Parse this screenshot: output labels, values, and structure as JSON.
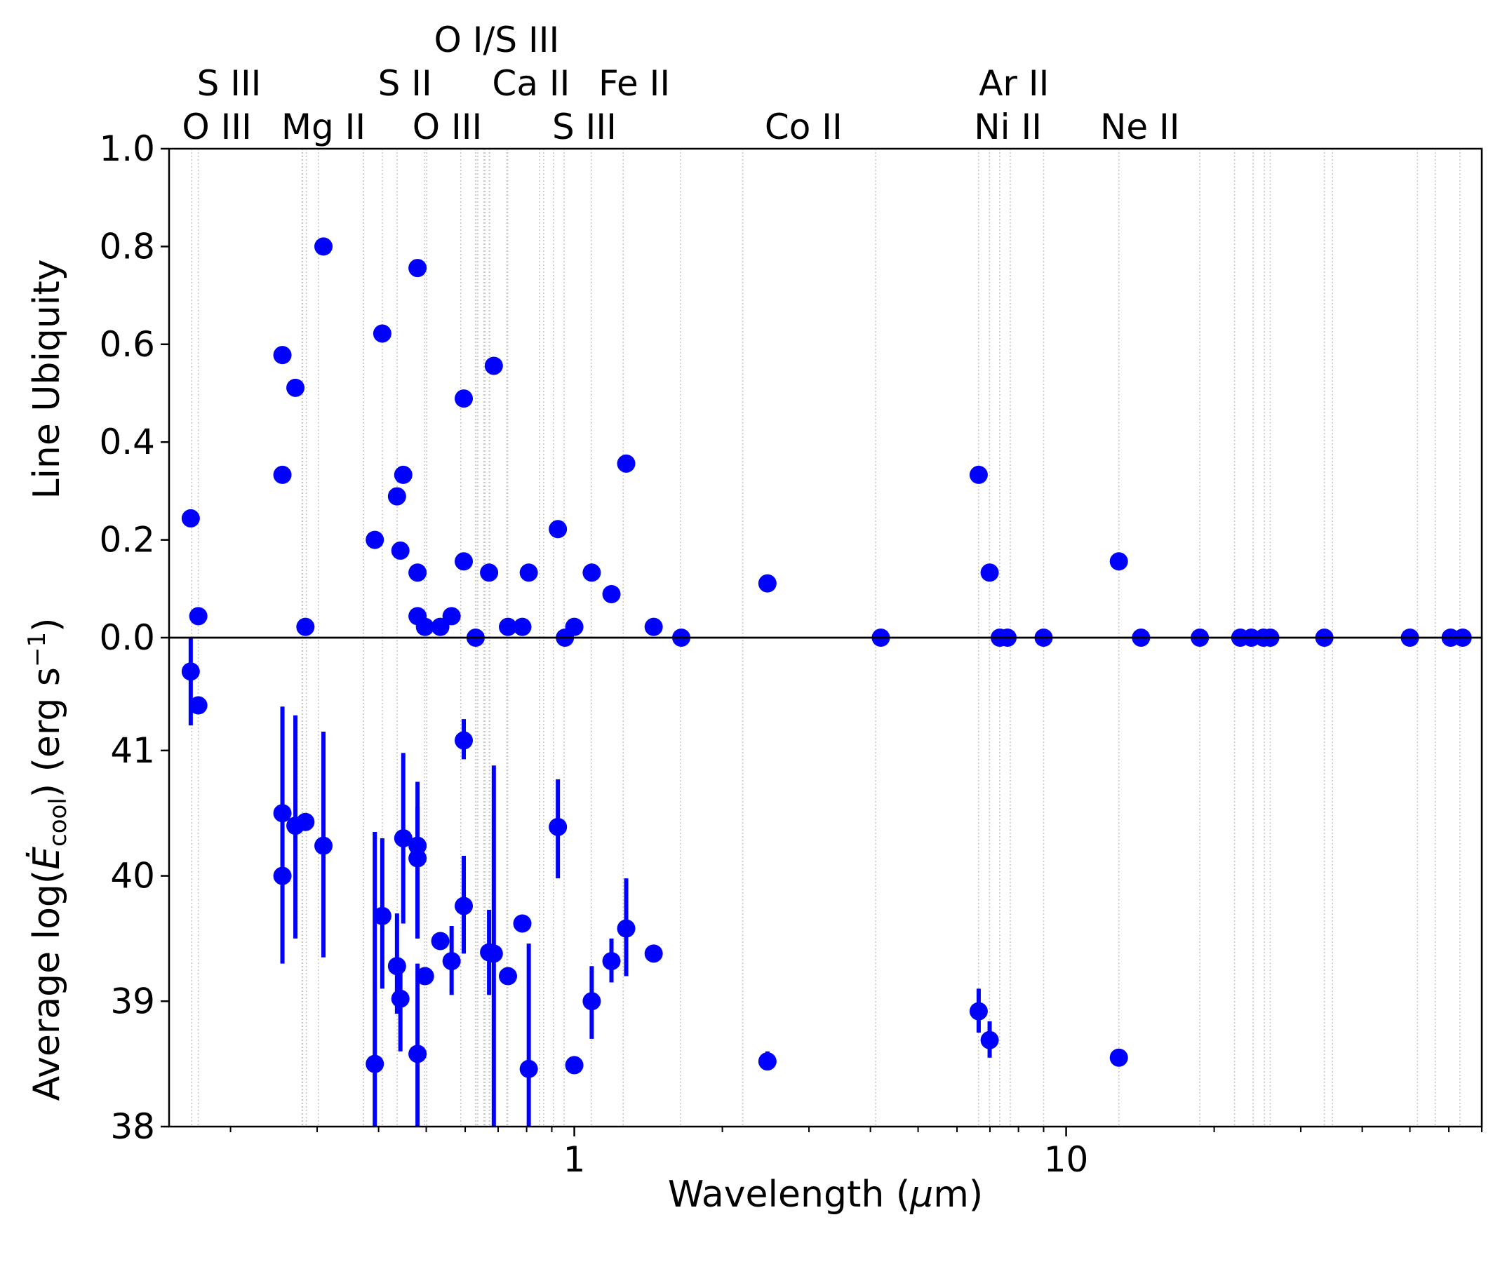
{
  "chart_data": {
    "type": "scatter",
    "xscale": "log",
    "xlabel": "Wavelength ($\\mu$m)",
    "xlabel_parts": {
      "prefix": "Wavelength (",
      "symbol": "μ",
      "suffix": "m)"
    },
    "xlim": [
      0.15,
      70
    ],
    "xticks": [
      {
        "value": 1,
        "label": "1"
      },
      {
        "value": 10,
        "label": "10"
      }
    ],
    "point_color": "#0000ff",
    "ion_labels": [
      {
        "text": "O III",
        "x": 0.17,
        "row": 1
      },
      {
        "text": "S III",
        "x": 0.18,
        "row": 3
      },
      {
        "text": "Mg II",
        "x": 0.28,
        "row": 1
      },
      {
        "text": "S II",
        "x": 0.41,
        "row": 2
      },
      {
        "text": "O III",
        "x": 0.5,
        "row": 1
      },
      {
        "text": "O I/S III",
        "x": 0.63,
        "row": 4
      },
      {
        "text": "Ca II",
        "x": 0.74,
        "row": 2
      },
      {
        "text": "S III",
        "x": 0.95,
        "row": 1
      },
      {
        "text": "Fe II",
        "x": 1.2,
        "row": 2
      },
      {
        "text": "Co II",
        "x": 2.65,
        "row": 1
      },
      {
        "text": "Ar II",
        "x": 7.1,
        "row": 2
      },
      {
        "text": "Ni II",
        "x": 6.9,
        "row": 1
      },
      {
        "text": "Ne II",
        "x": 12.8,
        "row": 1
      }
    ],
    "line_wavelengths": [
      0.1666,
      0.172,
      0.2796,
      0.2803,
      0.2852,
      0.3018,
      0.3726,
      0.3729,
      0.4069,
      0.4363,
      0.4959,
      0.5007,
      0.5876,
      0.63,
      0.6312,
      0.6364,
      0.6548,
      0.6583,
      0.6716,
      0.6731,
      0.7291,
      0.732,
      0.8498,
      0.8662,
      0.9069,
      0.9531,
      1.083,
      1.257,
      1.644,
      2.2,
      4.1,
      6.6366,
      6.9853,
      7.327,
      7.7,
      9.0,
      12.8,
      18.7,
      22.0,
      24.0,
      25.3,
      26.0,
      33.5,
      34.8,
      51.8,
      56.3,
      63.2
    ],
    "panels": [
      {
        "name": "ubiquity",
        "ylabel": "Line Ubiquity",
        "ylim": [
          0,
          1.0
        ],
        "yticks": [
          {
            "value": 0.0,
            "label": "0.0"
          },
          {
            "value": 0.2,
            "label": "0.2"
          },
          {
            "value": 0.4,
            "label": "0.4"
          },
          {
            "value": 0.6,
            "label": "0.6"
          },
          {
            "value": 0.8,
            "label": "0.8"
          },
          {
            "value": 1.0,
            "label": "1.0"
          }
        ],
        "points": [
          {
            "x": 0.166,
            "y": 0.244
          },
          {
            "x": 0.172,
            "y": 0.044
          },
          {
            "x": 0.255,
            "y": 0.578
          },
          {
            "x": 0.255,
            "y": 0.333
          },
          {
            "x": 0.271,
            "y": 0.511
          },
          {
            "x": 0.284,
            "y": 0.022
          },
          {
            "x": 0.309,
            "y": 0.8
          },
          {
            "x": 0.393,
            "y": 0.2
          },
          {
            "x": 0.407,
            "y": 0.622
          },
          {
            "x": 0.436,
            "y": 0.289
          },
          {
            "x": 0.443,
            "y": 0.178
          },
          {
            "x": 0.449,
            "y": 0.333
          },
          {
            "x": 0.48,
            "y": 0.756
          },
          {
            "x": 0.48,
            "y": 0.133
          },
          {
            "x": 0.48,
            "y": 0.044
          },
          {
            "x": 0.497,
            "y": 0.022
          },
          {
            "x": 0.534,
            "y": 0.022
          },
          {
            "x": 0.563,
            "y": 0.044
          },
          {
            "x": 0.596,
            "y": 0.489
          },
          {
            "x": 0.596,
            "y": 0.156
          },
          {
            "x": 0.63,
            "y": 0.0
          },
          {
            "x": 0.671,
            "y": 0.133
          },
          {
            "x": 0.686,
            "y": 0.556
          },
          {
            "x": 0.733,
            "y": 0.022
          },
          {
            "x": 0.784,
            "y": 0.022
          },
          {
            "x": 0.808,
            "y": 0.133
          },
          {
            "x": 0.926,
            "y": 0.222
          },
          {
            "x": 0.957,
            "y": 0.0
          },
          {
            "x": 1.0,
            "y": 0.022
          },
          {
            "x": 1.085,
            "y": 0.133
          },
          {
            "x": 1.19,
            "y": 0.089
          },
          {
            "x": 1.275,
            "y": 0.356
          },
          {
            "x": 1.45,
            "y": 0.022
          },
          {
            "x": 1.65,
            "y": 0.0
          },
          {
            "x": 2.47,
            "y": 0.111
          },
          {
            "x": 4.2,
            "y": 0.0
          },
          {
            "x": 6.64,
            "y": 0.333
          },
          {
            "x": 6.99,
            "y": 0.133
          },
          {
            "x": 7.33,
            "y": 0.0
          },
          {
            "x": 7.6,
            "y": 0.0
          },
          {
            "x": 9.0,
            "y": 0.0
          },
          {
            "x": 12.8,
            "y": 0.156
          },
          {
            "x": 14.2,
            "y": 0.0
          },
          {
            "x": 18.7,
            "y": 0.0
          },
          {
            "x": 22.6,
            "y": 0.0
          },
          {
            "x": 23.8,
            "y": 0.0
          },
          {
            "x": 25.2,
            "y": 0.0
          },
          {
            "x": 26.0,
            "y": 0.0
          },
          {
            "x": 33.5,
            "y": 0.0
          },
          {
            "x": 50.0,
            "y": 0.0
          },
          {
            "x": 60.5,
            "y": 0.0
          },
          {
            "x": 64.0,
            "y": 0.0
          }
        ]
      },
      {
        "name": "cooling",
        "ylabel": "Average log($\\dot{E}_{\\rm cool}$) (erg s$^{-1}$)",
        "ylabel_parts": {
          "prefix": "Average log(",
          "symbol": "Ė",
          "subscript": "cool",
          "mid": ") (erg s",
          "superscript": "−1",
          "suffix": ")"
        },
        "ylim": [
          38.0,
          41.9
        ],
        "yticks": [
          {
            "value": 38,
            "label": "38"
          },
          {
            "value": 39,
            "label": "39"
          },
          {
            "value": 40,
            "label": "40"
          },
          {
            "value": 41,
            "label": "41"
          }
        ],
        "points": [
          {
            "x": 0.166,
            "y": 41.63,
            "lo": 41.2,
            "hi": 41.9
          },
          {
            "x": 0.172,
            "y": 41.36,
            "lo": 41.36,
            "hi": 41.36
          },
          {
            "x": 0.255,
            "y": 40.5,
            "lo": 39.3,
            "hi": 41.35
          },
          {
            "x": 0.255,
            "y": 40.0,
            "lo": 40.0,
            "hi": 40.0
          },
          {
            "x": 0.271,
            "y": 40.4,
            "lo": 39.5,
            "hi": 41.28
          },
          {
            "x": 0.284,
            "y": 40.43,
            "lo": 40.43,
            "hi": 40.43
          },
          {
            "x": 0.309,
            "y": 40.24,
            "lo": 39.35,
            "hi": 41.15
          },
          {
            "x": 0.393,
            "y": 38.5,
            "lo": 37.9,
            "hi": 40.35
          },
          {
            "x": 0.407,
            "y": 39.68,
            "lo": 39.1,
            "hi": 40.3
          },
          {
            "x": 0.436,
            "y": 39.28,
            "lo": 38.9,
            "hi": 39.7
          },
          {
            "x": 0.443,
            "y": 39.02,
            "lo": 38.6,
            "hi": 39.32
          },
          {
            "x": 0.449,
            "y": 40.3,
            "lo": 39.62,
            "hi": 40.98
          },
          {
            "x": 0.48,
            "y": 40.24,
            "lo": 39.5,
            "hi": 40.75
          },
          {
            "x": 0.48,
            "y": 40.14,
            "lo": 39.5,
            "hi": 40.55
          },
          {
            "x": 0.48,
            "y": 38.58,
            "lo": 37.9,
            "hi": 39.3
          },
          {
            "x": 0.497,
            "y": 39.2,
            "lo": 39.2,
            "hi": 39.2
          },
          {
            "x": 0.534,
            "y": 39.48,
            "lo": 39.48,
            "hi": 39.48
          },
          {
            "x": 0.563,
            "y": 39.32,
            "lo": 39.05,
            "hi": 39.6
          },
          {
            "x": 0.596,
            "y": 41.08,
            "lo": 40.93,
            "hi": 41.25
          },
          {
            "x": 0.596,
            "y": 39.76,
            "lo": 39.38,
            "hi": 40.16
          },
          {
            "x": 0.671,
            "y": 39.39,
            "lo": 39.05,
            "hi": 39.73
          },
          {
            "x": 0.686,
            "y": 39.38,
            "lo": 37.9,
            "hi": 40.88
          },
          {
            "x": 0.733,
            "y": 39.2,
            "lo": 39.2,
            "hi": 39.2
          },
          {
            "x": 0.784,
            "y": 39.62,
            "lo": 39.62,
            "hi": 39.62
          },
          {
            "x": 0.808,
            "y": 38.46,
            "lo": 37.9,
            "hi": 39.46
          },
          {
            "x": 0.926,
            "y": 40.39,
            "lo": 39.98,
            "hi": 40.77
          },
          {
            "x": 1.0,
            "y": 38.49,
            "lo": 38.49,
            "hi": 38.49
          },
          {
            "x": 1.085,
            "y": 39.0,
            "lo": 38.7,
            "hi": 39.28
          },
          {
            "x": 1.19,
            "y": 39.32,
            "lo": 39.15,
            "hi": 39.5
          },
          {
            "x": 1.275,
            "y": 39.58,
            "lo": 39.2,
            "hi": 39.98
          },
          {
            "x": 1.45,
            "y": 39.38,
            "lo": 39.38,
            "hi": 39.38
          },
          {
            "x": 2.47,
            "y": 38.52,
            "lo": 38.45,
            "hi": 38.6
          },
          {
            "x": 6.64,
            "y": 38.92,
            "lo": 38.75,
            "hi": 39.1
          },
          {
            "x": 6.99,
            "y": 38.69,
            "lo": 38.55,
            "hi": 38.84
          },
          {
            "x": 12.8,
            "y": 38.55,
            "lo": 38.55,
            "hi": 38.55
          }
        ]
      }
    ]
  }
}
